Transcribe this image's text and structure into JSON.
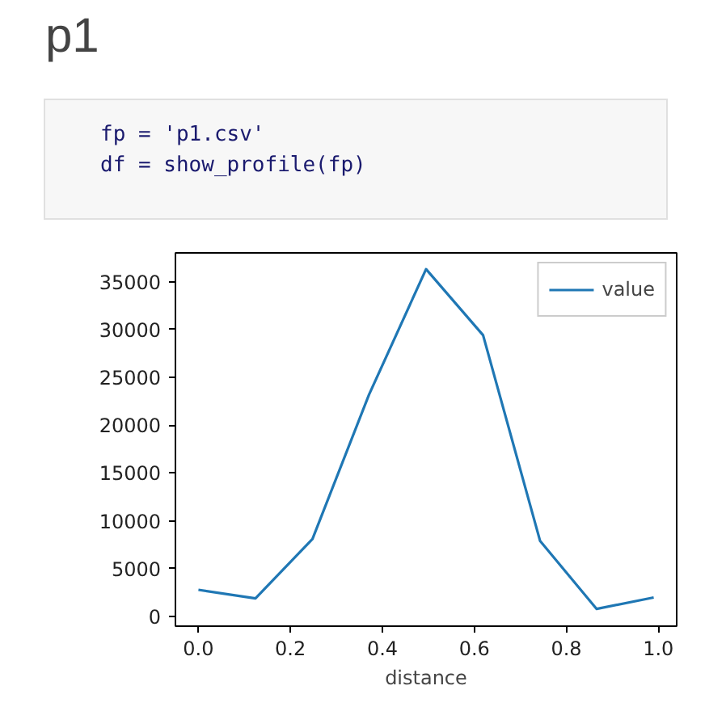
{
  "chart_data": {
    "type": "line",
    "title": "p1",
    "annotations": [
      "fp = 'p1.csv'",
      "df = show_profile(fp)"
    ],
    "xlabel": "distance",
    "x": [
      0,
      0.124,
      0.248,
      0.371,
      0.495,
      0.619,
      0.743,
      0.866,
      0.99
    ],
    "series": [
      {
        "name": "value",
        "color": "#1f77b4",
        "values": [
          2800,
          1900,
          8100,
          23200,
          36300,
          29400,
          7900,
          800,
          2000
        ]
      }
    ],
    "xlim": [
      -0.05,
      1.04
    ],
    "ylim": [
      -1000,
      38000
    ],
    "xticks": [
      {
        "value": 0,
        "label": "0.0"
      },
      0.2,
      0.4,
      0.6,
      0.8,
      {
        "value": 1,
        "label": "1.0"
      }
    ],
    "yticks": [
      0,
      5000,
      10000,
      15000,
      20000,
      25000,
      30000,
      35000
    ],
    "legend": "top right",
    "line_style": "solid"
  }
}
